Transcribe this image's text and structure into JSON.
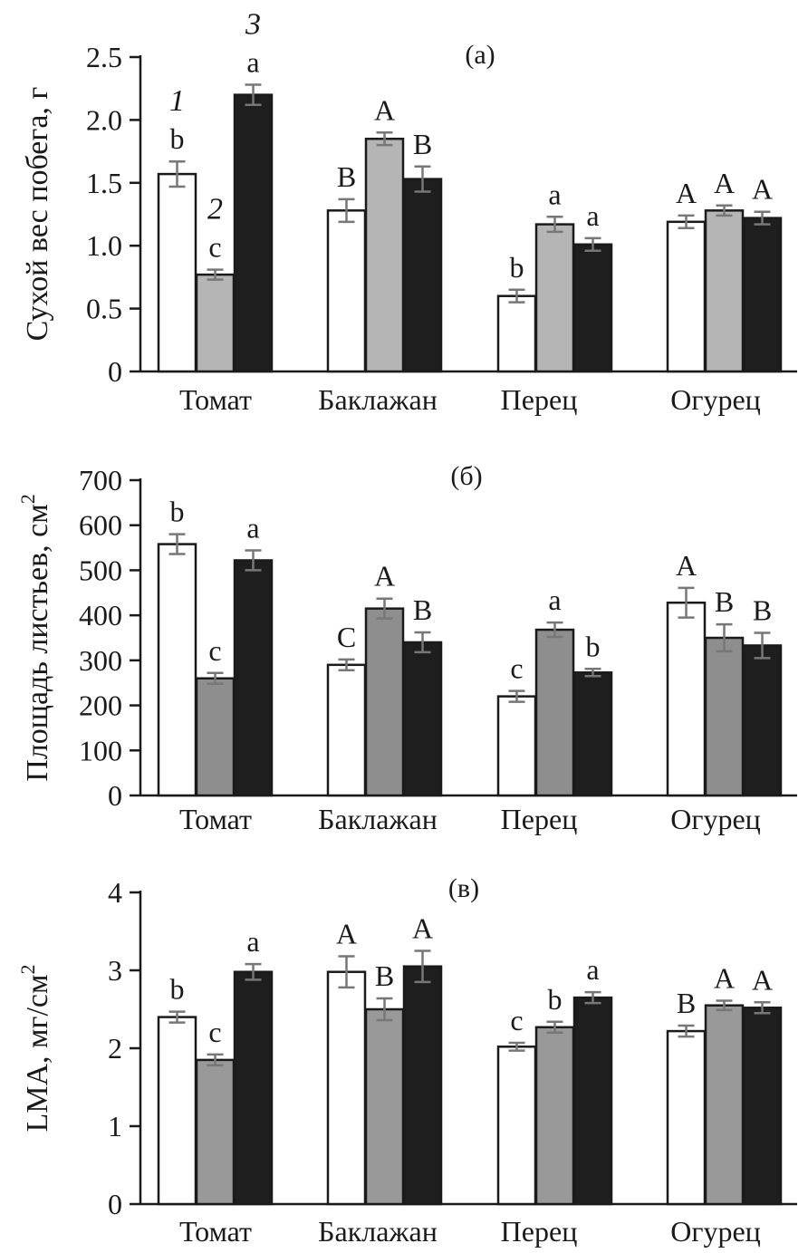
{
  "chart_data": [
    {
      "type": "bar",
      "panel_label": "(а)",
      "ylabel": "Сухой вес побега, г",
      "categories": [
        "Томат",
        "Баклажан",
        "Перец",
        "Огурец"
      ],
      "ylim": [
        0,
        2.5
      ],
      "yticks": [
        "0",
        "0.5",
        "1.0",
        "1.5",
        "2.0",
        "2.5"
      ],
      "ytick_values": [
        0,
        0.5,
        1.0,
        1.5,
        2.0,
        2.5
      ],
      "series_numbers": [
        "1",
        "2",
        "3"
      ],
      "series": [
        {
          "name": "1",
          "color": "#ffffff",
          "values": [
            1.57,
            1.28,
            0.6,
            1.19
          ],
          "errors": [
            0.1,
            0.09,
            0.05,
            0.05
          ],
          "letters": [
            "b",
            "B",
            "b",
            "A"
          ]
        },
        {
          "name": "2",
          "color": "#b5b5b5",
          "values": [
            0.77,
            1.85,
            1.17,
            1.28
          ],
          "errors": [
            0.04,
            0.05,
            0.06,
            0.04
          ],
          "letters": [
            "c",
            "A",
            "a",
            "A"
          ]
        },
        {
          "name": "3",
          "color": "#1e1e1e",
          "values": [
            2.2,
            1.53,
            1.01,
            1.22
          ],
          "errors": [
            0.08,
            0.1,
            0.05,
            0.05
          ],
          "letters": [
            "a",
            "B",
            "a",
            "A"
          ]
        }
      ]
    },
    {
      "type": "bar",
      "panel_label": "(б)",
      "ylabel": "Площадь листьев, см",
      "ylabel_sup": "2",
      "categories": [
        "Томат",
        "Баклажан",
        "Перец",
        "Огурец"
      ],
      "ylim": [
        0,
        700
      ],
      "yticks": [
        "0",
        "100",
        "200",
        "300",
        "400",
        "500",
        "600",
        "700"
      ],
      "ytick_values": [
        0,
        100,
        200,
        300,
        400,
        500,
        600,
        700
      ],
      "series": [
        {
          "name": "1",
          "color": "#ffffff",
          "values": [
            558,
            290,
            220,
            428
          ],
          "errors": [
            22,
            12,
            12,
            33
          ],
          "letters": [
            "b",
            "C",
            "c",
            "A"
          ]
        },
        {
          "name": "2",
          "color": "#8e8e8e",
          "values": [
            260,
            415,
            368,
            350
          ],
          "errors": [
            12,
            22,
            16,
            30
          ],
          "letters": [
            "c",
            "A",
            "a",
            "B"
          ]
        },
        {
          "name": "3",
          "color": "#1e1e1e",
          "values": [
            522,
            340,
            273,
            333
          ],
          "errors": [
            22,
            22,
            8,
            28
          ],
          "letters": [
            "a",
            "B",
            "b",
            "B"
          ]
        }
      ]
    },
    {
      "type": "bar",
      "panel_label": "(в)",
      "ylabel": "LMA, мг/см",
      "ylabel_sup": "2",
      "categories": [
        "Томат",
        "Баклажан",
        "Перец",
        "Огурец"
      ],
      "ylim": [
        0,
        4
      ],
      "yticks": [
        "0",
        "1",
        "2",
        "3",
        "4"
      ],
      "ytick_values": [
        0,
        1,
        2,
        3,
        4
      ],
      "series": [
        {
          "name": "1",
          "color": "#ffffff",
          "values": [
            2.4,
            2.98,
            2.02,
            2.22
          ],
          "errors": [
            0.07,
            0.2,
            0.05,
            0.07
          ],
          "letters": [
            "b",
            "A",
            "c",
            "B"
          ]
        },
        {
          "name": "2",
          "color": "#999999",
          "values": [
            1.85,
            2.5,
            2.27,
            2.55
          ],
          "errors": [
            0.07,
            0.14,
            0.07,
            0.06
          ],
          "letters": [
            "c",
            "B",
            "b",
            "A"
          ]
        },
        {
          "name": "3",
          "color": "#1e1e1e",
          "values": [
            2.98,
            3.05,
            2.65,
            2.52
          ],
          "errors": [
            0.1,
            0.2,
            0.07,
            0.07
          ],
          "letters": [
            "a",
            "A",
            "a",
            "A"
          ]
        }
      ]
    }
  ]
}
